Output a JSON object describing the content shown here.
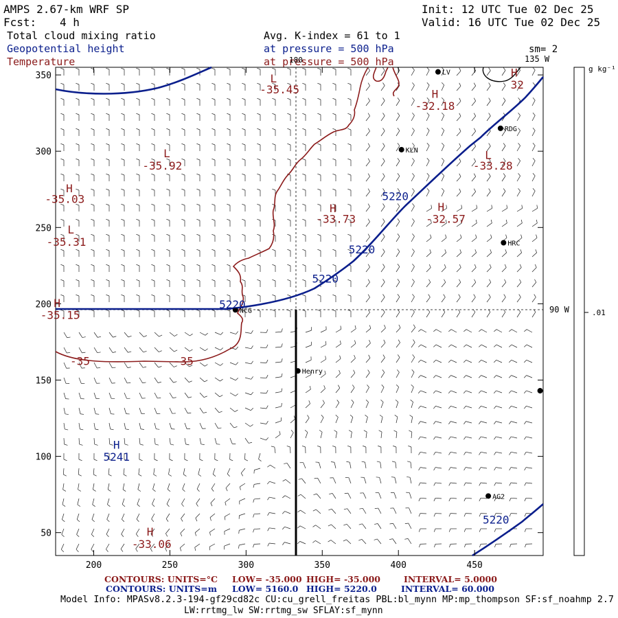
{
  "header": {
    "title": "AMPS 2.67-km WRF SP",
    "init": "Init: 12 UTC Tue 02 Dec 25",
    "fcst_label": "Fcst:",
    "fcst_value": "4 h",
    "valid": "Valid: 16 UTC Tue 02 Dec 25",
    "field1": "Total cloud mixing ratio",
    "field2": "Geopotential height",
    "field3": "Temperature",
    "avg_line": "Avg. K-index =  61 to   1",
    "pressure1": "at pressure =  500 hPa",
    "pressure2": "at pressure =  500 hPa",
    "sm": "sm= 2"
  },
  "colorbar": {
    "unit": "g kg⁻¹",
    "tick": ".01"
  },
  "meridians": {
    "lon180": "180",
    "lon135": "135 W",
    "lon90": "90 W"
  },
  "chart_data": {
    "type": "contour",
    "xlim": [
      175,
      495
    ],
    "ylim": [
      35,
      355
    ],
    "xticks": [
      200,
      250,
      300,
      350,
      400,
      450
    ],
    "yticks": [
      50,
      100,
      150,
      200,
      250,
      300,
      350
    ],
    "stations": [
      {
        "label": "LV",
        "x": 426,
        "y": 352
      },
      {
        "label": "RDG",
        "x": 467,
        "y": 315
      },
      {
        "label": "KLN",
        "x": 402,
        "y": 301
      },
      {
        "label": "HRC",
        "x": 469,
        "y": 240
      },
      {
        "label": "NCG",
        "x": 293,
        "y": 196
      },
      {
        "label": "Henry",
        "x": 334,
        "y": 156
      },
      {
        "label": "AG2",
        "x": 459,
        "y": 74
      },
      {
        "label": "",
        "x": 493,
        "y": 143
      }
    ],
    "temperature_labels": [
      {
        "text": "L",
        "x": 318,
        "y": 345
      },
      {
        "text": "-35.45",
        "x": 322,
        "y": 338
      },
      {
        "text": "H",
        "x": 424,
        "y": 335
      },
      {
        "text": "-32.18",
        "x": 424,
        "y": 327
      },
      {
        "text": "H",
        "x": 476,
        "y": 349
      },
      {
        "text": "32",
        "x": 478,
        "y": 341
      },
      {
        "text": "L",
        "x": 248,
        "y": 296
      },
      {
        "text": "-35.92",
        "x": 245,
        "y": 288
      },
      {
        "text": "L",
        "x": 459,
        "y": 295
      },
      {
        "text": "-33.28",
        "x": 462,
        "y": 288
      },
      {
        "text": "H",
        "x": 184,
        "y": 273
      },
      {
        "text": "-35.03",
        "x": 181,
        "y": 266
      },
      {
        "text": "H",
        "x": 357,
        "y": 260
      },
      {
        "text": "-33.73",
        "x": 359,
        "y": 253
      },
      {
        "text": "H",
        "x": 428,
        "y": 261
      },
      {
        "text": "-32.57",
        "x": 431,
        "y": 253
      },
      {
        "text": "L",
        "x": 185,
        "y": 246
      },
      {
        "text": "-35.31",
        "x": 182,
        "y": 238
      },
      {
        "text": "H",
        "x": 176,
        "y": 198
      },
      {
        "text": "-35.15",
        "x": 178,
        "y": 190
      },
      {
        "text": "-35",
        "x": 191,
        "y": 160
      },
      {
        "text": "-35",
        "x": 259,
        "y": 160
      },
      {
        "text": "H",
        "x": 237,
        "y": 48
      },
      {
        "text": "-33.06",
        "x": 238,
        "y": 40
      }
    ],
    "height_labels": [
      {
        "text": "5220",
        "x": 398,
        "y": 268
      },
      {
        "text": "5220",
        "x": 376,
        "y": 233
      },
      {
        "text": "5220",
        "x": 352,
        "y": 214
      },
      {
        "text": "5220",
        "x": 291,
        "y": 197
      },
      {
        "text": "H",
        "x": 215,
        "y": 105
      },
      {
        "text": "5241",
        "x": 215,
        "y": 97
      },
      {
        "text": "5220",
        "x": 464,
        "y": 56
      }
    ]
  },
  "footer": {
    "contours1_label": "CONTOURS:  UNITS=°C",
    "contours1_low": "LOW= -35.000",
    "contours1_high": "HIGH= -35.000",
    "contours1_interval": "INTERVAL=   5.0000",
    "contours2_label": "CONTOURS:  UNITS=m",
    "contours2_low": "LOW=  5160.0",
    "contours2_high": "HIGH=  5220.0",
    "contours2_interval": "INTERVAL=  60.000",
    "model_info": "Model Info: MPASv8.2.3-194-gf29cd82c CU:cu_grell_freitas PBL:bl_mynn MP:mp_thompson SF:sf_noahmp 2.7",
    "model_info2": "LW:rrtmg_lw SW:rrtmg_sw SFLAY:sf_mynn"
  },
  "colors": {
    "blue": "#0a1e8c",
    "red": "#8b1a1a",
    "black": "#000000"
  }
}
